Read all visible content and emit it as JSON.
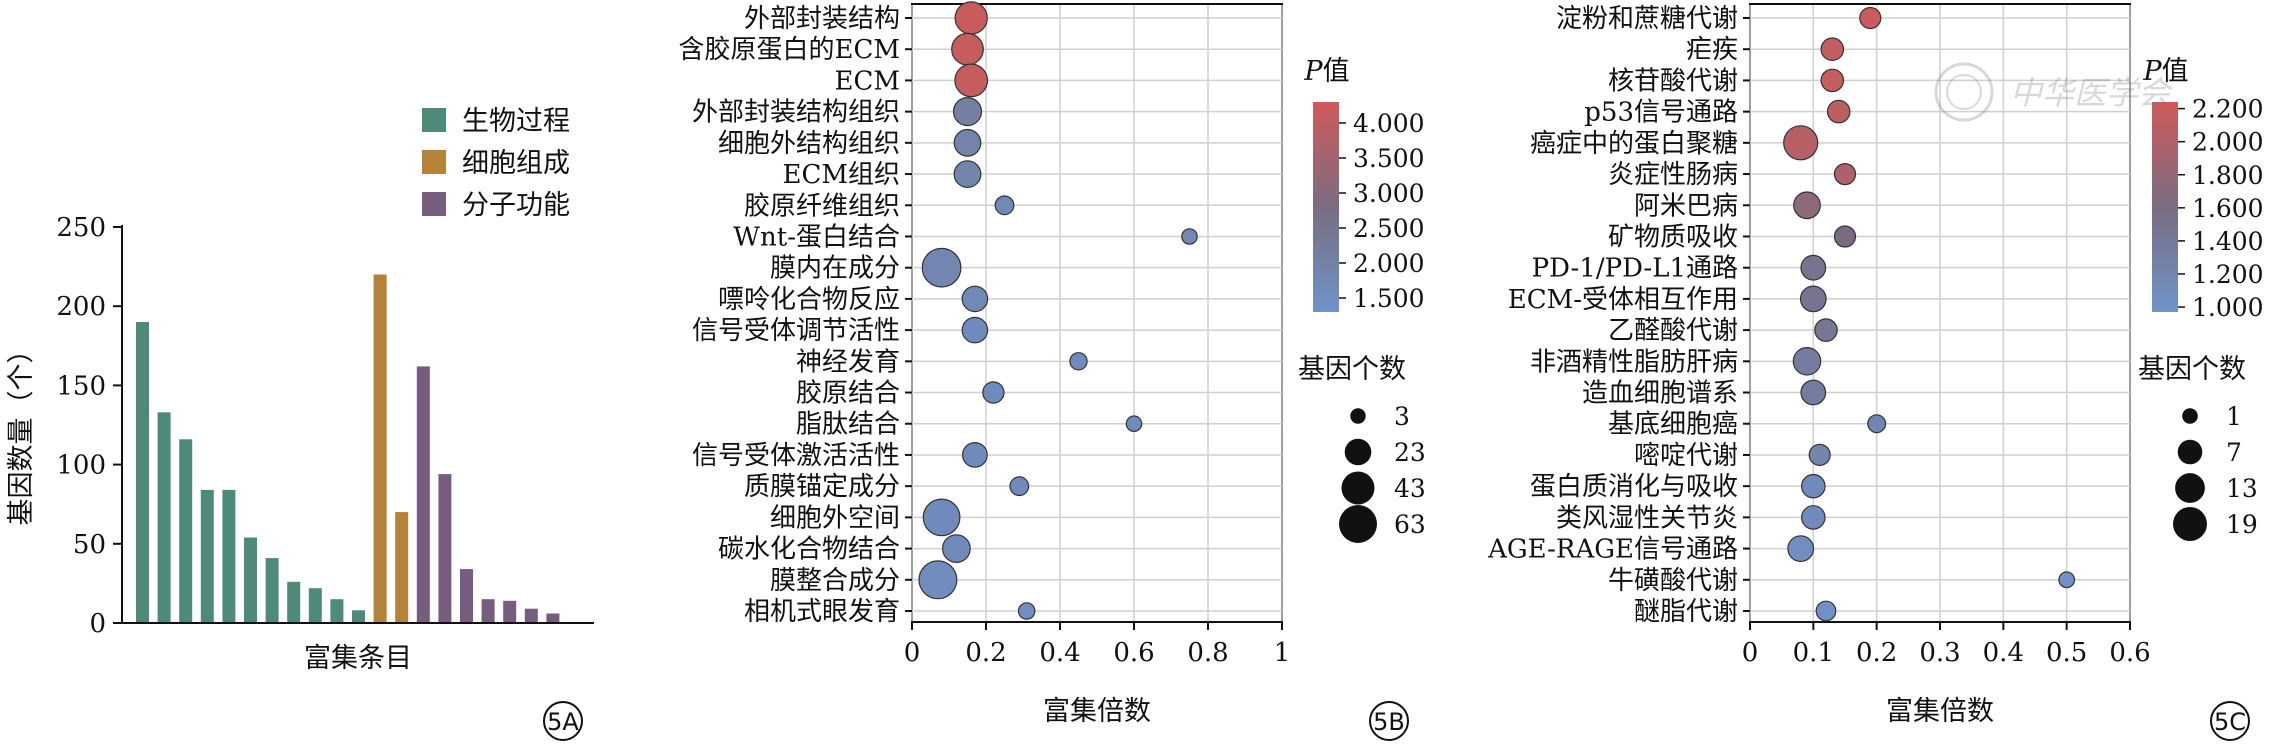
{
  "panelA": {
    "chart_data": {
      "type": "bar",
      "xlabel": "富集条目",
      "ylabel": "基因数量（个）",
      "ylim": [
        0,
        250
      ],
      "yticks": [
        0,
        50,
        100,
        150,
        200,
        250
      ],
      "grid": false,
      "legend_position": "top-right",
      "series": [
        {
          "name": "生物过程",
          "color": "#4e8a7a",
          "values": [
            190,
            133,
            116,
            84,
            84,
            54,
            41,
            26,
            22,
            15,
            8
          ]
        },
        {
          "name": "细胞组成",
          "color": "#b5823a",
          "values": [
            220,
            70
          ]
        },
        {
          "name": "分子功能",
          "color": "#765c7f",
          "values": [
            162,
            94,
            34,
            15,
            14,
            9,
            6
          ]
        }
      ]
    },
    "badge": "5A"
  },
  "panelB": {
    "chart_data": {
      "type": "scatter",
      "xlabel": "富集倍数",
      "xlim": [
        0,
        1
      ],
      "xticks": [
        "0",
        "0.2",
        "0.4",
        "0.6",
        "0.8",
        "1"
      ],
      "grid": true,
      "categories": [
        "外部封装结构",
        "含胶原蛋白的ECM",
        "ECM",
        "外部封装结构组织",
        "细胞外结构组织",
        "ECM组织",
        "胶原纤维组织",
        "Wnt-蛋白结合",
        "膜内在成分",
        "嘌呤化合物反应",
        "信号受体调节活性",
        "神经发育",
        "胶原结合",
        "脂肽结合",
        "信号受体激活活性",
        "质膜锚定成分",
        "细胞外空间",
        "碳水化合物结合",
        "膜整合成分",
        "相机式眼发育"
      ],
      "x": [
        0.16,
        0.15,
        0.16,
        0.15,
        0.15,
        0.15,
        0.25,
        0.75,
        0.08,
        0.17,
        0.17,
        0.45,
        0.22,
        0.6,
        0.17,
        0.29,
        0.08,
        0.12,
        0.07,
        0.31
      ],
      "p": [
        4.2,
        4.1,
        4.1,
        2.1,
        1.95,
        1.9,
        1.7,
        1.7,
        1.8,
        1.7,
        1.6,
        1.6,
        1.6,
        1.6,
        1.6,
        1.6,
        1.6,
        1.6,
        1.55,
        1.5
      ],
      "count": [
        40,
        38,
        42,
        27,
        23,
        23,
        7,
        3,
        66,
        20,
        20,
        5,
        11,
        3,
        18,
        7,
        57,
        26,
        62,
        4
      ],
      "color_legend": {
        "title_italic": "P",
        "title_suffix": "值",
        "ticks": [
          "4.000",
          "3.500",
          "3.000",
          "2.500",
          "2.000",
          "1.500"
        ],
        "range": [
          1.3,
          4.3
        ]
      },
      "size_legend": {
        "title": "基因个数",
        "values": [
          3,
          23,
          43,
          63
        ],
        "labels": [
          "3",
          "23",
          "43",
          "63"
        ]
      }
    },
    "badge": "5B"
  },
  "panelC": {
    "chart_data": {
      "type": "scatter",
      "xlabel": "富集倍数",
      "xlim": [
        0,
        0.6
      ],
      "xticks": [
        "0",
        "0.1",
        "0.2",
        "0.3",
        "0.4",
        "0.5",
        "0.6"
      ],
      "grid": true,
      "categories": [
        "淀粉和蔗糖代谢",
        "疟疾",
        "核苷酸代谢",
        "p53信号通路",
        "癌症中的蛋白聚糖",
        "炎症性肠病",
        "阿米巴病",
        "矿物质吸收",
        "PD-1/PD-L1通路",
        "ECM-受体相互作用",
        "乙醛酸代谢",
        "非酒精性脂肪肝病",
        "造血细胞谱系",
        "基底细胞癌",
        "嘧啶代谢",
        "蛋白质消化与吸收",
        "类风湿性关节炎",
        "AGE-RAGE信号通路",
        "牛磺酸代谢",
        "醚脂代谢"
      ],
      "x": [
        0.19,
        0.13,
        0.13,
        0.14,
        0.08,
        0.15,
        0.09,
        0.15,
        0.1,
        0.1,
        0.12,
        0.09,
        0.1,
        0.2,
        0.11,
        0.1,
        0.1,
        0.08,
        0.5,
        0.12
      ],
      "p": [
        2.2,
        2.15,
        2.15,
        2.1,
        2.05,
        2.0,
        1.75,
        1.6,
        1.5,
        1.5,
        1.45,
        1.35,
        1.35,
        1.2,
        1.2,
        1.1,
        1.1,
        1.05,
        1.0,
        1.0
      ],
      "count": [
        4,
        5,
        5,
        5,
        19,
        4,
        9,
        4,
        7,
        8,
        5,
        10,
        7,
        2,
        4,
        6,
        6,
        8,
        1,
        3
      ],
      "color_legend": {
        "title_italic": "P",
        "title_suffix": "值",
        "ticks": [
          "2.200",
          "2.000",
          "1.800",
          "1.600",
          "1.400",
          "1.200",
          "1.000"
        ],
        "range": [
          0.97,
          2.24
        ]
      },
      "size_legend": {
        "title": "基因个数",
        "values": [
          1,
          7,
          13,
          19
        ],
        "labels": [
          "1",
          "7",
          "13",
          "19"
        ]
      }
    },
    "badge": "5C"
  },
  "watermark": "中华医学会",
  "colors": {
    "low": "#6e93c9",
    "mid": "#7a6d82",
    "high": "#d05a5a"
  }
}
